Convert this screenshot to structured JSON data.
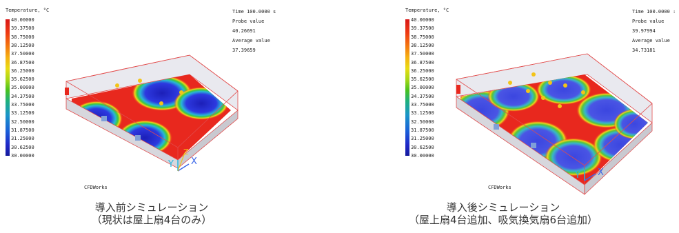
{
  "left": {
    "legend_title": "Temperature, °C",
    "ticks": [
      "40.00000",
      "39.37500",
      "38.75000",
      "38.12500",
      "37.50000",
      "36.87500",
      "36.25000",
      "35.62500",
      "35.00000",
      "34.37500",
      "33.75000",
      "33.12500",
      "32.50000",
      "31.87500",
      "31.25000",
      "30.62500",
      "30.00000"
    ],
    "time_label": "Time 100.0000 s",
    "probe_label": "Probe value",
    "probe_value": "40.26691",
    "avg_label": "Average value",
    "avg_value": "37.39659",
    "brand": "CFDWorks",
    "axis_y": "Y",
    "axis_x": "X",
    "axis_z": "Z",
    "caption_line1": "導入前シミュレーション",
    "caption_line2": "（現状は屋上扇4台のみ）"
  },
  "right": {
    "legend_title": "Temperature, °C",
    "ticks": [
      "40.00000",
      "39.37500",
      "38.75000",
      "38.12500",
      "37.50000",
      "36.87500",
      "36.25000",
      "35.62500",
      "35.00000",
      "34.37500",
      "33.75000",
      "33.12500",
      "32.50000",
      "31.87500",
      "31.25000",
      "30.62500",
      "30.00000"
    ],
    "time_label": "Time 100.0000 :",
    "probe_label": "Probe value",
    "probe_value": "39.97994",
    "avg_label": "Average value",
    "avg_value": "34.73181",
    "brand": "CFDWorks",
    "axis_y": "Y",
    "axis_x": "X",
    "caption_line1": "導入後シミュレーション",
    "caption_line2": "（屋上扇4台追加、吸気換気扇6台追加）"
  },
  "colors": {
    "hot": "#e8281e",
    "cold": "#2a2fd6",
    "box_edge": "#e24b4b",
    "axis_cyan": "#27b8e0",
    "axis_blue": "#3b67e8",
    "fan": "#f3c417"
  }
}
